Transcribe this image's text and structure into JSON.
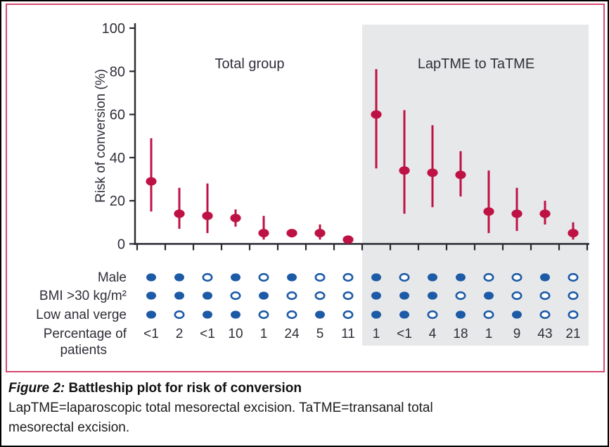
{
  "colors": {
    "marker_crimson": "#be1245",
    "dot_blue": "#1d5ba7",
    "shade_gray": "#e7e8ea",
    "frame_pink": "#d34a72",
    "axis_dark": "#2b2931",
    "text_dark": "#302e38"
  },
  "caption": {
    "label": "Figure 2:",
    "title": " Battleship plot for risk of conversion",
    "note_line1": "LapTME=laparoscopic total mesorectal excision. TaTME=transanal total",
    "note_line2": "mesorectal excision."
  },
  "chart_data": {
    "type": "scatter",
    "subtype": "battleship-plot-point-estimates-with-95CI",
    "ylabel": "Risk of conversion (%)",
    "ylim": [
      0,
      100
    ],
    "yticks": [
      0,
      20,
      40,
      60,
      80,
      100
    ],
    "grid": false,
    "group_labels": [
      "Total group",
      "LapTME to TaTME"
    ],
    "row_labels": {
      "male": "Male",
      "bmi": "BMI >30 kg/m²",
      "lav": "Low anal verge",
      "pct_line1": "Percentage of",
      "pct_line2": "patients"
    },
    "columns": [
      {
        "group": 0,
        "risk": 29,
        "ci": [
          15,
          49
        ],
        "male": 1,
        "bmi": 1,
        "lav": 1,
        "pct": "<1"
      },
      {
        "group": 0,
        "risk": 14,
        "ci": [
          7,
          26
        ],
        "male": 1,
        "bmi": 1,
        "lav": 0,
        "pct": "2"
      },
      {
        "group": 0,
        "risk": 13,
        "ci": [
          5,
          28
        ],
        "male": 0,
        "bmi": 1,
        "lav": 1,
        "pct": "<1"
      },
      {
        "group": 0,
        "risk": 12,
        "ci": [
          8,
          16
        ],
        "male": 1,
        "bmi": 0,
        "lav": 1,
        "pct": "10"
      },
      {
        "group": 0,
        "risk": 5,
        "ci": [
          2,
          13
        ],
        "male": 0,
        "bmi": 1,
        "lav": 0,
        "pct": "1"
      },
      {
        "group": 0,
        "risk": 5,
        "ci": [
          3,
          6
        ],
        "male": 1,
        "bmi": 0,
        "lav": 0,
        "pct": "24"
      },
      {
        "group": 0,
        "risk": 5,
        "ci": [
          2,
          9
        ],
        "male": 0,
        "bmi": 0,
        "lav": 1,
        "pct": "5"
      },
      {
        "group": 0,
        "risk": 2,
        "ci": [
          1,
          3
        ],
        "male": 0,
        "bmi": 0,
        "lav": 0,
        "pct": "11"
      },
      {
        "group": 1,
        "risk": 60,
        "ci": [
          35,
          81
        ],
        "male": 1,
        "bmi": 1,
        "lav": 1,
        "pct": "1"
      },
      {
        "group": 1,
        "risk": 34,
        "ci": [
          14,
          62
        ],
        "male": 0,
        "bmi": 1,
        "lav": 1,
        "pct": "<1"
      },
      {
        "group": 1,
        "risk": 33,
        "ci": [
          17,
          55
        ],
        "male": 1,
        "bmi": 1,
        "lav": 0,
        "pct": "4"
      },
      {
        "group": 1,
        "risk": 32,
        "ci": [
          22,
          43
        ],
        "male": 1,
        "bmi": 0,
        "lav": 1,
        "pct": "18"
      },
      {
        "group": 1,
        "risk": 15,
        "ci": [
          5,
          34
        ],
        "male": 0,
        "bmi": 1,
        "lav": 0,
        "pct": "1"
      },
      {
        "group": 1,
        "risk": 14,
        "ci": [
          6,
          26
        ],
        "male": 0,
        "bmi": 0,
        "lav": 1,
        "pct": "9"
      },
      {
        "group": 1,
        "risk": 14,
        "ci": [
          9,
          20
        ],
        "male": 1,
        "bmi": 0,
        "lav": 0,
        "pct": "43"
      },
      {
        "group": 1,
        "risk": 5,
        "ci": [
          2,
          10
        ],
        "male": 0,
        "bmi": 0,
        "lav": 0,
        "pct": "21"
      }
    ]
  }
}
